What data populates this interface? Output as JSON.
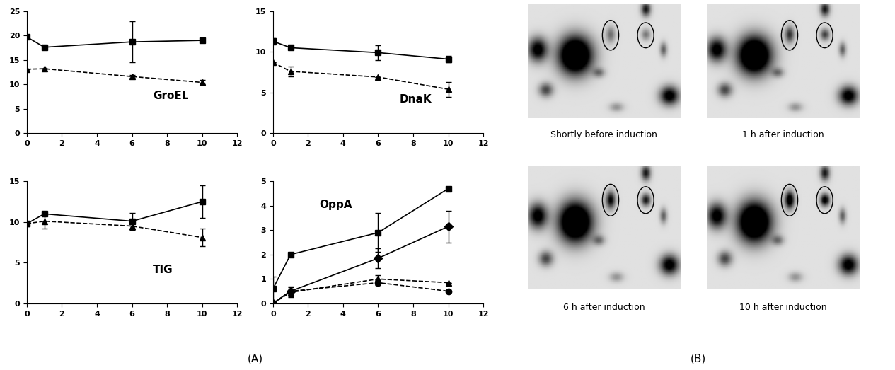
{
  "chart_data": [
    {
      "type": "line",
      "annotation": "GroEL",
      "x": [
        0,
        1,
        6,
        10
      ],
      "xlim": [
        0,
        12
      ],
      "xticks": [
        0,
        2,
        4,
        6,
        8,
        10,
        12
      ],
      "ylim": [
        0,
        25
      ],
      "yticks": [
        0,
        5,
        10,
        15,
        20,
        25
      ],
      "series": [
        {
          "color": "#000000",
          "marker": "square",
          "line_style": "solid",
          "values": [
            19.7,
            17.6,
            18.7,
            19.0
          ],
          "errors": [
            0.3,
            null,
            4.2,
            0.4
          ]
        },
        {
          "color": "#000000",
          "marker": "triangle",
          "line_style": "dashed",
          "values": [
            13.1,
            13.2,
            11.6,
            10.4
          ],
          "errors": [
            null,
            null,
            0.3,
            0.5
          ]
        }
      ]
    },
    {
      "type": "line",
      "annotation": "DnaK",
      "x": [
        0,
        1,
        6,
        10
      ],
      "xlim": [
        0,
        12
      ],
      "xticks": [
        0,
        2,
        4,
        6,
        8,
        10,
        12
      ],
      "ylim": [
        0,
        15
      ],
      "yticks": [
        0,
        5,
        10,
        15
      ],
      "series": [
        {
          "color": "#000000",
          "marker": "square",
          "line_style": "solid",
          "values": [
            11.3,
            10.5,
            9.9,
            9.1
          ],
          "errors": [
            0.4,
            null,
            0.9,
            0.4
          ]
        },
        {
          "color": "#000000",
          "marker": "triangle",
          "line_style": "dashed",
          "values": [
            8.7,
            7.6,
            6.9,
            5.4
          ],
          "errors": [
            null,
            0.6,
            null,
            0.9
          ]
        }
      ]
    },
    {
      "type": "line",
      "annotation": "TIG",
      "x": [
        0,
        1,
        6,
        10
      ],
      "xlim": [
        0,
        12
      ],
      "xticks": [
        0,
        2,
        4,
        6,
        8,
        10,
        12
      ],
      "ylim": [
        0,
        15
      ],
      "yticks": [
        0,
        5,
        10,
        15
      ],
      "series": [
        {
          "color": "#000000",
          "marker": "square",
          "line_style": "solid",
          "values": [
            9.8,
            11.0,
            10.1,
            12.5
          ],
          "errors": [
            null,
            null,
            1.0,
            2.0
          ]
        },
        {
          "color": "#000000",
          "marker": "triangle",
          "line_style": "dashed",
          "values": [
            9.8,
            10.1,
            9.5,
            8.1
          ],
          "errors": [
            null,
            0.9,
            0.5,
            1.1
          ]
        }
      ]
    },
    {
      "type": "line",
      "annotation": "OppA",
      "x": [
        0,
        1,
        6,
        10
      ],
      "xlim": [
        0,
        12
      ],
      "xticks": [
        0,
        2,
        4,
        6,
        8,
        10,
        12
      ],
      "ylim": [
        0,
        5
      ],
      "yticks": [
        0,
        1,
        2,
        3,
        4,
        5
      ],
      "series": [
        {
          "color": "#000000",
          "marker": "square",
          "line_style": "solid",
          "values": [
            0.6,
            2.0,
            2.9,
            4.7
          ],
          "errors": [
            0.5,
            null,
            0.8,
            null
          ]
        },
        {
          "color": "#000000",
          "marker": "diamond",
          "line_style": "solid",
          "values": [
            0.0,
            0.5,
            1.85,
            3.15
          ],
          "errors": [
            null,
            0.2,
            0.4,
            0.65
          ]
        },
        {
          "color": "#000000",
          "marker": "triangle",
          "line_style": "dashed",
          "values": [
            0.0,
            0.45,
            1.0,
            0.85
          ],
          "errors": [
            null,
            0.2,
            0.15,
            null
          ]
        },
        {
          "color": "#000000",
          "marker": "circle",
          "line_style": "dashed",
          "values": [
            0.0,
            0.5,
            0.85,
            0.5
          ],
          "errors": [
            null,
            null,
            0.1,
            null
          ]
        }
      ]
    }
  ],
  "panel_labels": [
    "(A)",
    "(B)"
  ],
  "gel_images": {
    "captions": [
      "Shortly before induction",
      "1 h after induction",
      "6 h after induction",
      "10 h after induction"
    ]
  }
}
